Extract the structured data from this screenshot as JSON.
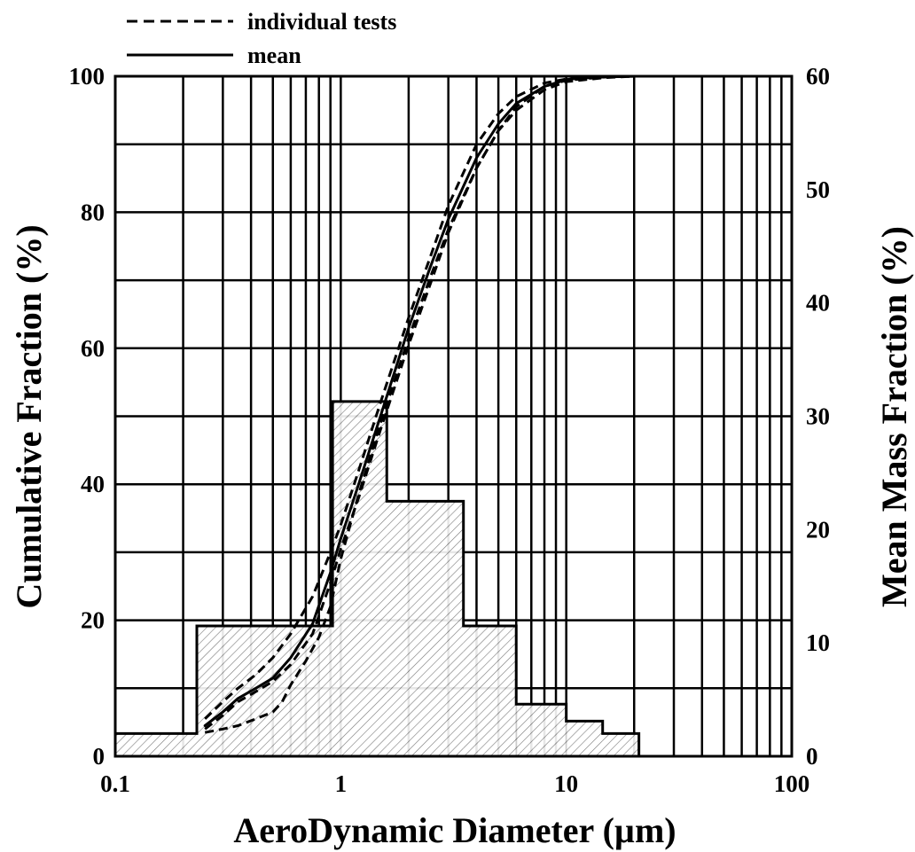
{
  "chart_data": {
    "type": "line",
    "xlabel": "AeroDynamic Diameter (µm)",
    "ylabel": "Cumulative Fraction (%)",
    "y2label": "Mean Mass Fraction (%)",
    "xscale": "log",
    "xlim": [
      0.1,
      100
    ],
    "ylim": [
      0,
      100
    ],
    "y2lim": [
      0,
      60
    ],
    "grid": true,
    "legend_position": "top-left",
    "x_ticks": [
      "0.1",
      "1",
      "10",
      "100"
    ],
    "y_ticks": [
      "0",
      "20",
      "40",
      "60",
      "80",
      "100"
    ],
    "y2_ticks": [
      "0",
      "10",
      "20",
      "30",
      "40",
      "50",
      "60"
    ],
    "histogram": {
      "name": "Mean Mass Fraction",
      "axis": "right",
      "bins": [
        {
          "x0": 0.1,
          "x1": 0.23,
          "value": 2.0
        },
        {
          "x0": 0.23,
          "x1": 0.92,
          "value": 11.5
        },
        {
          "x0": 0.92,
          "x1": 1.6,
          "value": 31.3
        },
        {
          "x0": 1.6,
          "x1": 3.5,
          "value": 22.5
        },
        {
          "x0": 3.5,
          "x1": 6.0,
          "value": 11.5
        },
        {
          "x0": 6.0,
          "x1": 10.0,
          "value": 4.6
        },
        {
          "x0": 10.0,
          "x1": 14.5,
          "value": 3.1
        },
        {
          "x0": 14.5,
          "x1": 21.0,
          "value": 2.0
        }
      ]
    },
    "series": [
      {
        "name": "mean",
        "style": "solid",
        "axis": "left",
        "x": [
          0.25,
          0.3,
          0.35,
          0.42,
          0.5,
          0.6,
          0.75,
          0.9,
          1.0,
          1.2,
          1.5,
          2.0,
          2.5,
          3.0,
          4.0,
          5.0,
          6.0,
          8.0,
          10.0,
          12.0,
          15.0,
          20.0,
          25.0
        ],
        "values": [
          4.5,
          6.5,
          8.5,
          10.0,
          11.5,
          14.5,
          19.5,
          27.0,
          32.0,
          40.0,
          50.0,
          63.0,
          72.0,
          79.0,
          88.0,
          93.0,
          96.0,
          98.5,
          99.5,
          99.8,
          99.9,
          100.0,
          100.0
        ]
      },
      {
        "name": "individual tests",
        "style": "dashed",
        "axis": "left",
        "x": [
          0.25,
          0.3,
          0.35,
          0.42,
          0.5,
          0.6,
          0.75,
          0.9,
          1.0,
          1.2,
          1.5,
          2.0,
          2.5,
          3.0,
          4.0,
          5.0,
          6.0,
          8.0,
          10.0,
          15.0,
          20.0,
          25.0
        ],
        "values": [
          5.5,
          8.0,
          10.0,
          12.0,
          14.5,
          18.0,
          23.5,
          30.0,
          34.0,
          42.0,
          52.0,
          64.5,
          73.5,
          81.0,
          90.0,
          94.5,
          97.0,
          99.0,
          99.6,
          99.9,
          100.0,
          100.0
        ]
      },
      {
        "name": "individual tests",
        "style": "dashed",
        "axis": "left",
        "x": [
          0.25,
          0.3,
          0.35,
          0.42,
          0.5,
          0.55,
          0.6,
          0.7,
          0.8,
          0.9,
          1.0,
          1.2,
          1.5,
          2.0,
          2.5,
          3.0,
          4.0,
          5.0,
          6.0,
          8.0,
          10.0,
          15.0,
          20.0,
          25.0
        ],
        "values": [
          3.5,
          4.0,
          4.5,
          5.5,
          6.5,
          8.0,
          10.5,
          14.0,
          17.5,
          22.0,
          29.0,
          38.5,
          49.0,
          61.5,
          70.5,
          77.5,
          86.5,
          92.0,
          95.5,
          98.5,
          99.4,
          99.9,
          100.0,
          100.0
        ]
      },
      {
        "name": "individual tests",
        "style": "dashed",
        "axis": "left",
        "x": [
          0.25,
          0.3,
          0.35,
          0.42,
          0.5,
          0.6,
          0.75,
          0.9,
          1.0,
          1.2,
          1.5,
          2.0,
          2.5,
          3.0,
          4.0,
          5.0,
          6.0,
          8.0,
          10.0,
          15.0,
          20.0,
          25.0
        ],
        "values": [
          4.0,
          6.0,
          8.0,
          9.5,
          11.0,
          13.5,
          18.0,
          25.5,
          30.5,
          38.0,
          48.0,
          60.5,
          69.5,
          77.0,
          86.5,
          92.0,
          95.0,
          98.0,
          99.2,
          99.8,
          100.0,
          100.0
        ]
      }
    ],
    "legend": [
      {
        "label": "individual tests",
        "style": "dashed"
      },
      {
        "label": "mean",
        "style": "solid"
      }
    ]
  }
}
